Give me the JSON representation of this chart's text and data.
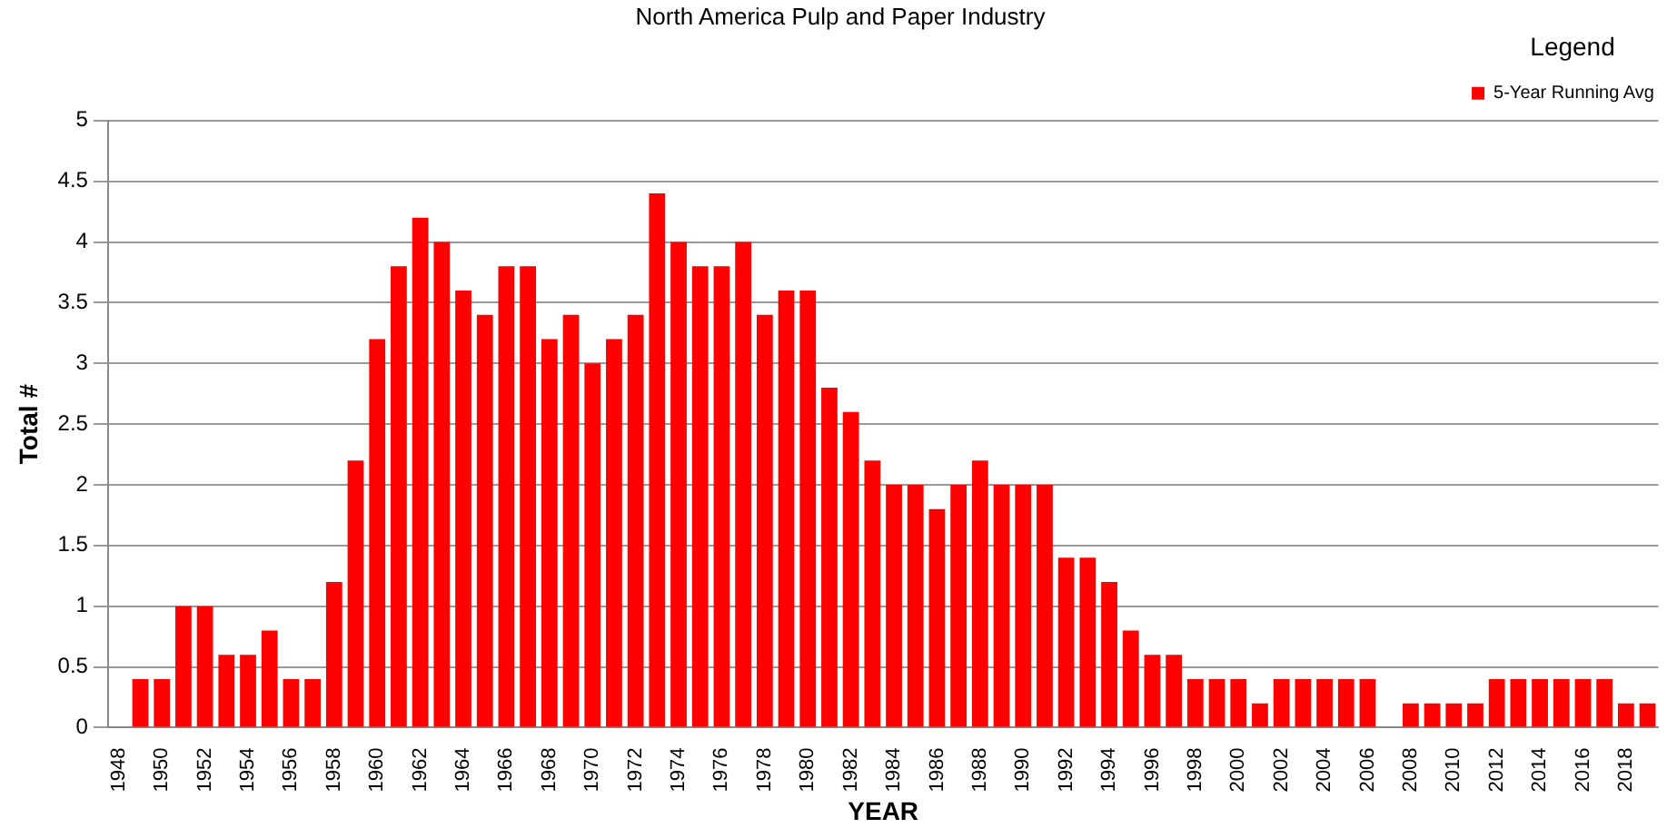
{
  "chart_data": {
    "type": "bar",
    "title": "North America Pulp and Paper Industry",
    "xlabel": "YEAR",
    "ylabel": "Total #",
    "legend_title": "Legend",
    "categories": [
      "1948",
      null,
      "1950",
      null,
      "1952",
      null,
      "1954",
      null,
      "1956",
      null,
      "1958",
      null,
      "1960",
      null,
      "1962",
      null,
      "1964",
      null,
      "1966",
      null,
      "1968",
      null,
      "1970",
      null,
      "1972",
      null,
      "1974",
      null,
      "1976",
      null,
      "1978",
      null,
      "1980",
      null,
      "1982",
      null,
      "1984",
      null,
      "1986",
      null,
      "1988",
      null,
      "1990",
      null,
      "1992",
      null,
      "1994",
      null,
      "1996",
      null,
      "1998",
      null,
      "2000",
      null,
      "2002",
      null,
      "2004",
      null,
      "2006",
      null,
      "2008",
      null,
      "2010",
      null,
      "2012",
      null,
      "2014",
      null,
      "2016",
      null,
      "2018",
      null
    ],
    "series": [
      {
        "name": "5-Year Running Avg",
        "color": "#ff0000",
        "values": [
          null,
          0.4,
          0.4,
          1.0,
          1.0,
          0.6,
          0.6,
          0.8,
          0.4,
          0.4,
          1.2,
          2.2,
          3.2,
          3.8,
          4.2,
          4.0,
          3.6,
          3.4,
          3.8,
          3.8,
          3.2,
          3.4,
          3.0,
          3.2,
          3.4,
          4.4,
          4.0,
          3.8,
          3.8,
          4.0,
          3.4,
          3.6,
          3.6,
          2.8,
          2.6,
          2.2,
          2.0,
          2.0,
          1.8,
          2.0,
          2.2,
          2.0,
          2.0,
          2.0,
          1.4,
          1.4,
          1.2,
          0.8,
          0.6,
          0.6,
          0.4,
          0.4,
          0.4,
          0.2,
          0.4,
          0.4,
          0.4,
          0.4,
          0.4,
          null,
          0.2,
          0.2,
          0.2,
          0.2,
          0.4,
          0.4,
          0.4,
          0.4,
          0.4,
          0.4,
          0.2,
          0.2
        ]
      }
    ],
    "ylim": [
      0,
      5
    ],
    "yticks": [
      0,
      0.5,
      1,
      1.5,
      2,
      2.5,
      3,
      3.5,
      4,
      4.5,
      5
    ],
    "grid": "y",
    "legend": "top right"
  }
}
